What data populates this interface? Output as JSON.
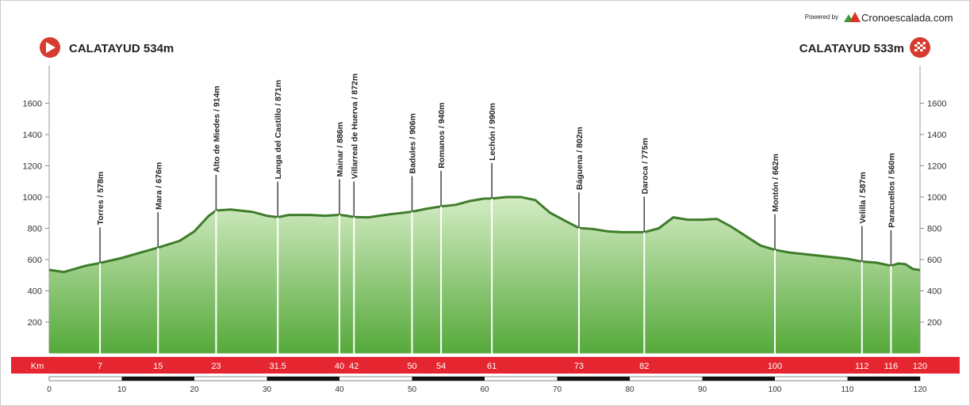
{
  "chart_data": {
    "type": "area",
    "powered_by": "Powered by",
    "brand": "Cronoescalada.com",
    "start_label": "CALATAYUD 534m",
    "finish_label": "CALATAYUD 533m",
    "color": "#5aa83c",
    "x": [
      0,
      2,
      5,
      7,
      10,
      13,
      15,
      18,
      20,
      22,
      23,
      25,
      28,
      30,
      31.5,
      33,
      36,
      38,
      40,
      41,
      42,
      44,
      47,
      50,
      52,
      54,
      56,
      58,
      60,
      61,
      63,
      65,
      67,
      69,
      71,
      73,
      75,
      77,
      79,
      82,
      84,
      86,
      88,
      90,
      92,
      94,
      96,
      98,
      100,
      102,
      105,
      108,
      110,
      112,
      114,
      116,
      117,
      118,
      119,
      120
    ],
    "values": [
      534,
      520,
      560,
      578,
      610,
      650,
      676,
      720,
      780,
      880,
      914,
      920,
      905,
      880,
      871,
      885,
      885,
      880,
      886,
      880,
      872,
      870,
      890,
      906,
      925,
      940,
      950,
      975,
      990,
      990,
      1000,
      1000,
      980,
      900,
      850,
      802,
      795,
      780,
      775,
      775,
      800,
      870,
      855,
      855,
      860,
      810,
      750,
      690,
      662,
      645,
      630,
      615,
      605,
      587,
      580,
      560,
      575,
      570,
      540,
      533
    ],
    "waypoints": [
      {
        "x": 7,
        "elevation": 578,
        "label": "Torres / 578m"
      },
      {
        "x": 15,
        "elevation": 676,
        "label": "Mara / 676m"
      },
      {
        "x": 23,
        "elevation": 914,
        "label": "Alto de Miedes / 914m"
      },
      {
        "x": 31.5,
        "elevation": 871,
        "label": "Langa del Castillo / 871m"
      },
      {
        "x": 40,
        "elevation": 886,
        "label": "Mainar / 886m"
      },
      {
        "x": 42,
        "elevation": 872,
        "label": "Villarreal de Huerva / 872m"
      },
      {
        "x": 50,
        "elevation": 906,
        "label": "Badules / 906m"
      },
      {
        "x": 54,
        "elevation": 940,
        "label": "Romanos / 940m"
      },
      {
        "x": 61,
        "elevation": 990,
        "label": "Lechón / 990m"
      },
      {
        "x": 73,
        "elevation": 802,
        "label": "Báguena / 802m"
      },
      {
        "x": 82,
        "elevation": 775,
        "label": "Daroca / 775m"
      },
      {
        "x": 100,
        "elevation": 662,
        "label": "Montón / 662m"
      },
      {
        "x": 112,
        "elevation": 587,
        "label": "Velilla / 587m"
      },
      {
        "x": 116,
        "elevation": 560,
        "label": "Paracuellos / 560m"
      }
    ],
    "km_title": "Km",
    "km_marks": [
      7,
      15,
      23,
      31.5,
      40,
      42,
      50,
      54,
      61,
      73,
      82,
      100,
      112,
      116,
      120
    ],
    "xlim": [
      0,
      120
    ],
    "xticks": [
      0,
      10,
      20,
      30,
      40,
      50,
      60,
      70,
      80,
      90,
      100,
      110,
      120
    ],
    "ylim": [
      0,
      1840
    ],
    "yticks": [
      200,
      400,
      600,
      800,
      1000,
      1200,
      1400,
      1600
    ]
  }
}
